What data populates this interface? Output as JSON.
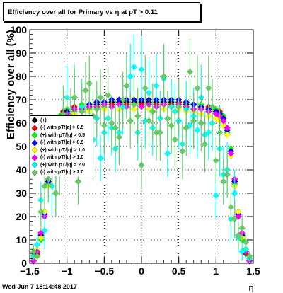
{
  "header": {
    "title": "Efficiency over all for Primary vs   η at pT > 0.11"
  },
  "footer": {
    "date": "Wed Jun  7 18:14:48 2017"
  },
  "chart_data": {
    "type": "scatter",
    "xlabel": "η",
    "ylabel": "Efficiency over all (%)",
    "xlim": [
      -1.5,
      1.5
    ],
    "ylim": [
      0,
      100
    ],
    "grid": true,
    "legend_position": "middle-left",
    "x_ticks": [
      "−1.5",
      "−1",
      "−0.5",
      "0",
      "0.5",
      "1",
      "1.5"
    ],
    "y_ticks": [
      "0",
      "10",
      "20",
      "30",
      "40",
      "50",
      "60",
      "70",
      "80",
      "90",
      "100"
    ],
    "series": [
      {
        "name": "(+)",
        "color": "#000000",
        "x": [
          -1.45,
          -1.4,
          -1.35,
          -1.3,
          -1.25,
          -1.2,
          -1.15,
          -1.1,
          -1.05,
          -1.0,
          -0.9,
          -0.8,
          -0.7,
          -0.6,
          -0.5,
          -0.4,
          -0.3,
          -0.2,
          -0.1,
          0.0,
          0.1,
          0.2,
          0.3,
          0.4,
          0.5,
          0.6,
          0.7,
          0.8,
          0.9,
          1.0,
          1.05,
          1.1,
          1.15,
          1.2,
          1.25,
          1.3,
          1.35,
          1.4,
          1.45
        ],
        "y": [
          1,
          5,
          11,
          21,
          35,
          48,
          57,
          62,
          64,
          65,
          66,
          67,
          67,
          68,
          68,
          69,
          69,
          69,
          69,
          69,
          69,
          69,
          69,
          69,
          69,
          68,
          68,
          67,
          66,
          65,
          64,
          62,
          57,
          48,
          35,
          21,
          11,
          5,
          1
        ]
      },
      {
        "name": "(-) with pT/|q| > 0.5",
        "color": "#ff0000",
        "x": [
          -1.45,
          -1.4,
          -1.35,
          -1.3,
          -1.25,
          -1.2,
          -1.15,
          -1.1,
          -1.05,
          -1.0,
          -0.9,
          -0.8,
          -0.7,
          -0.6,
          -0.5,
          -0.4,
          -0.3,
          -0.2,
          -0.1,
          0.0,
          0.1,
          0.2,
          0.3,
          0.4,
          0.5,
          0.6,
          0.7,
          0.8,
          0.9,
          1.0,
          1.05,
          1.1,
          1.15,
          1.2,
          1.25,
          1.3,
          1.35,
          1.4,
          1.45
        ],
        "y": [
          1,
          4,
          12,
          20,
          36,
          47,
          58,
          61,
          65,
          64,
          67,
          66,
          68,
          67,
          69,
          68,
          70,
          68,
          70,
          68,
          70,
          68,
          70,
          68,
          69,
          67,
          68,
          66,
          67,
          64,
          65,
          61,
          58,
          47,
          36,
          20,
          12,
          4,
          1
        ]
      },
      {
        "name": "(+) with pT/|q| > 0.5",
        "color": "#00ff00",
        "x": [
          -1.45,
          -1.4,
          -1.35,
          -1.3,
          -1.25,
          -1.2,
          -1.15,
          -1.1,
          -1.05,
          -1.0,
          -0.9,
          -0.8,
          -0.7,
          -0.6,
          -0.5,
          -0.4,
          -0.3,
          -0.2,
          -0.1,
          0.0,
          0.1,
          0.2,
          0.3,
          0.4,
          0.5,
          0.6,
          0.7,
          0.8,
          0.9,
          1.0,
          1.05,
          1.1,
          1.15,
          1.2,
          1.25,
          1.3,
          1.35,
          1.4,
          1.45
        ],
        "y": [
          2,
          5,
          10,
          22,
          34,
          49,
          56,
          63,
          63,
          66,
          65,
          68,
          66,
          69,
          67,
          70,
          68,
          70,
          68,
          70,
          68,
          70,
          68,
          70,
          68,
          69,
          66,
          68,
          65,
          66,
          63,
          63,
          56,
          49,
          34,
          22,
          10,
          5,
          2
        ]
      },
      {
        "name": "(-) with pT/|q| > 0.5",
        "color": "#0000ff",
        "x": [
          -1.45,
          -1.4,
          -1.35,
          -1.3,
          -1.25,
          -1.2,
          -1.15,
          -1.1,
          -1.05,
          -1.0,
          -0.9,
          -0.8,
          -0.7,
          -0.6,
          -0.5,
          -0.4,
          -0.3,
          -0.2,
          -0.1,
          0.0,
          0.1,
          0.2,
          0.3,
          0.4,
          0.5,
          0.6,
          0.7,
          0.8,
          0.9,
          1.0,
          1.05,
          1.1,
          1.15,
          1.2,
          1.25,
          1.3,
          1.35,
          1.4,
          1.45
        ],
        "y": [
          1,
          5,
          12,
          21,
          35,
          48,
          57,
          62,
          64,
          65,
          66,
          67,
          68,
          69,
          69,
          70,
          70,
          70,
          70,
          70,
          70,
          70,
          70,
          70,
          70,
          69,
          68,
          67,
          66,
          65,
          64,
          62,
          57,
          48,
          35,
          21,
          12,
          5,
          1
        ]
      },
      {
        "name": "(+) with pT/|q| > 1.0",
        "color": "#ffff00",
        "x": [
          -1.45,
          -1.4,
          -1.35,
          -1.3,
          -1.25,
          -1.2,
          -1.15,
          -1.1,
          -1.05,
          -1.0,
          -0.9,
          -0.8,
          -0.7,
          -0.6,
          -0.5,
          -0.4,
          -0.3,
          -0.2,
          -0.1,
          0.0,
          0.1,
          0.2,
          0.3,
          0.4,
          0.5,
          0.6,
          0.7,
          0.8,
          0.9,
          1.0,
          1.05,
          1.1,
          1.15,
          1.2,
          1.25,
          1.3,
          1.35,
          1.4,
          1.45
        ],
        "y": [
          2,
          6,
          11,
          22,
          33,
          46,
          55,
          60,
          62,
          63,
          64,
          65,
          65,
          66,
          66,
          67,
          66,
          67,
          66,
          67,
          66,
          67,
          66,
          67,
          66,
          65,
          65,
          64,
          63,
          62,
          61,
          59,
          55,
          46,
          33,
          22,
          11,
          6,
          2
        ]
      },
      {
        "name": "(-) with pT/|q| > 1.0",
        "color": "#ff00ff",
        "x": [
          -1.45,
          -1.4,
          -1.35,
          -1.3,
          -1.25,
          -1.2,
          -1.15,
          -1.1,
          -1.05,
          -1.0,
          -0.9,
          -0.8,
          -0.7,
          -0.6,
          -0.5,
          -0.4,
          -0.3,
          -0.2,
          -0.1,
          0.0,
          0.1,
          0.2,
          0.3,
          0.4,
          0.5,
          0.6,
          0.7,
          0.8,
          0.9,
          1.0,
          1.05,
          1.1,
          1.15,
          1.2,
          1.25,
          1.3,
          1.35,
          1.4,
          1.45
        ],
        "y": [
          1,
          5,
          13,
          20,
          36,
          47,
          58,
          61,
          64,
          64,
          66,
          66,
          67,
          67,
          68,
          67,
          68,
          67,
          68,
          67,
          68,
          67,
          68,
          67,
          68,
          67,
          66,
          66,
          65,
          64,
          63,
          61,
          58,
          47,
          36,
          20,
          13,
          5,
          1
        ]
      },
      {
        "name": "(+) with pT/|q| > 2.0",
        "color": "#00ffff",
        "x": [
          -1.45,
          -1.4,
          -1.35,
          -1.3,
          -1.25,
          -1.2,
          -1.15,
          -1.1,
          -1.05,
          -1.0,
          -0.95,
          -0.9,
          -0.85,
          -0.8,
          -0.75,
          -0.7,
          -0.65,
          -0.6,
          -0.55,
          -0.5,
          -0.45,
          -0.4,
          -0.35,
          -0.3,
          -0.25,
          -0.2,
          -0.15,
          -0.1,
          -0.05,
          0.0,
          0.05,
          0.1,
          0.15,
          0.2,
          0.25,
          0.3,
          0.35,
          0.4,
          0.45,
          0.5,
          0.55,
          0.6,
          0.65,
          0.7,
          0.75,
          0.8,
          0.85,
          0.9,
          0.95,
          1.0,
          1.05,
          1.1,
          1.15,
          1.2,
          1.25,
          1.3,
          1.35,
          1.4,
          1.45
        ],
        "y": [
          3,
          8,
          27,
          14,
          40,
          33,
          30,
          48,
          58,
          71,
          61,
          71,
          52,
          67,
          49,
          60,
          53,
          62,
          45,
          56,
          62,
          58,
          49,
          56,
          67,
          76,
          80,
          84,
          56,
          83,
          61,
          73,
          58,
          76,
          62,
          79,
          47,
          67,
          65,
          61,
          51,
          66,
          59,
          63,
          57,
          71,
          55,
          56,
          60,
          29,
          49,
          38,
          40,
          19,
          30,
          11,
          5,
          6,
          2
        ],
        "err": [
          2,
          4,
          8,
          8,
          12,
          12,
          10,
          10,
          12,
          14,
          10,
          14,
          10,
          12,
          10,
          12,
          10,
          12,
          10,
          12,
          10,
          12,
          10,
          12,
          12,
          14,
          14,
          14,
          12,
          14,
          12,
          14,
          12,
          14,
          12,
          14,
          10,
          12,
          12,
          12,
          10,
          12,
          12,
          12,
          12,
          14,
          10,
          12,
          12,
          10,
          12,
          12,
          12,
          10,
          10,
          6,
          4,
          4,
          2
        ]
      },
      {
        "name": "(-) with pT/|q| > 2.0",
        "color": "#66cc66",
        "x": [
          -1.45,
          -1.4,
          -1.35,
          -1.3,
          -1.25,
          -1.2,
          -1.15,
          -1.1,
          -1.05,
          -1.0,
          -0.95,
          -0.9,
          -0.85,
          -0.8,
          -0.75,
          -0.7,
          -0.65,
          -0.6,
          -0.55,
          -0.5,
          -0.45,
          -0.4,
          -0.35,
          -0.3,
          -0.25,
          -0.2,
          -0.15,
          -0.1,
          -0.05,
          0.0,
          0.05,
          0.1,
          0.15,
          0.2,
          0.25,
          0.3,
          0.35,
          0.4,
          0.45,
          0.5,
          0.55,
          0.6,
          0.65,
          0.7,
          0.75,
          0.8,
          0.85,
          0.9,
          0.95,
          1.0,
          1.05,
          1.1,
          1.15,
          1.2,
          1.25,
          1.3,
          1.35,
          1.4,
          1.45
        ],
        "y": [
          5,
          3,
          22,
          33,
          36,
          40,
          30,
          41,
          64,
          60,
          63,
          71,
          35,
          65,
          74,
          77,
          63,
          66,
          71,
          59,
          72,
          60,
          58,
          54,
          70,
          76,
          61,
          68,
          63,
          42,
          75,
          61,
          65,
          56,
          56,
          80,
          62,
          59,
          53,
          67,
          48,
          58,
          82,
          61,
          75,
          60,
          51,
          75,
          67,
          44,
          56,
          35,
          38,
          24,
          19,
          12,
          15,
          9,
          3
        ],
        "err": [
          3,
          4,
          8,
          10,
          10,
          10,
          10,
          12,
          12,
          12,
          12,
          12,
          10,
          12,
          12,
          12,
          12,
          12,
          12,
          12,
          12,
          12,
          12,
          12,
          12,
          14,
          12,
          12,
          12,
          10,
          14,
          12,
          12,
          12,
          12,
          14,
          12,
          12,
          12,
          12,
          12,
          12,
          14,
          12,
          14,
          12,
          12,
          14,
          12,
          10,
          12,
          10,
          10,
          8,
          8,
          6,
          6,
          4,
          2
        ]
      }
    ]
  }
}
